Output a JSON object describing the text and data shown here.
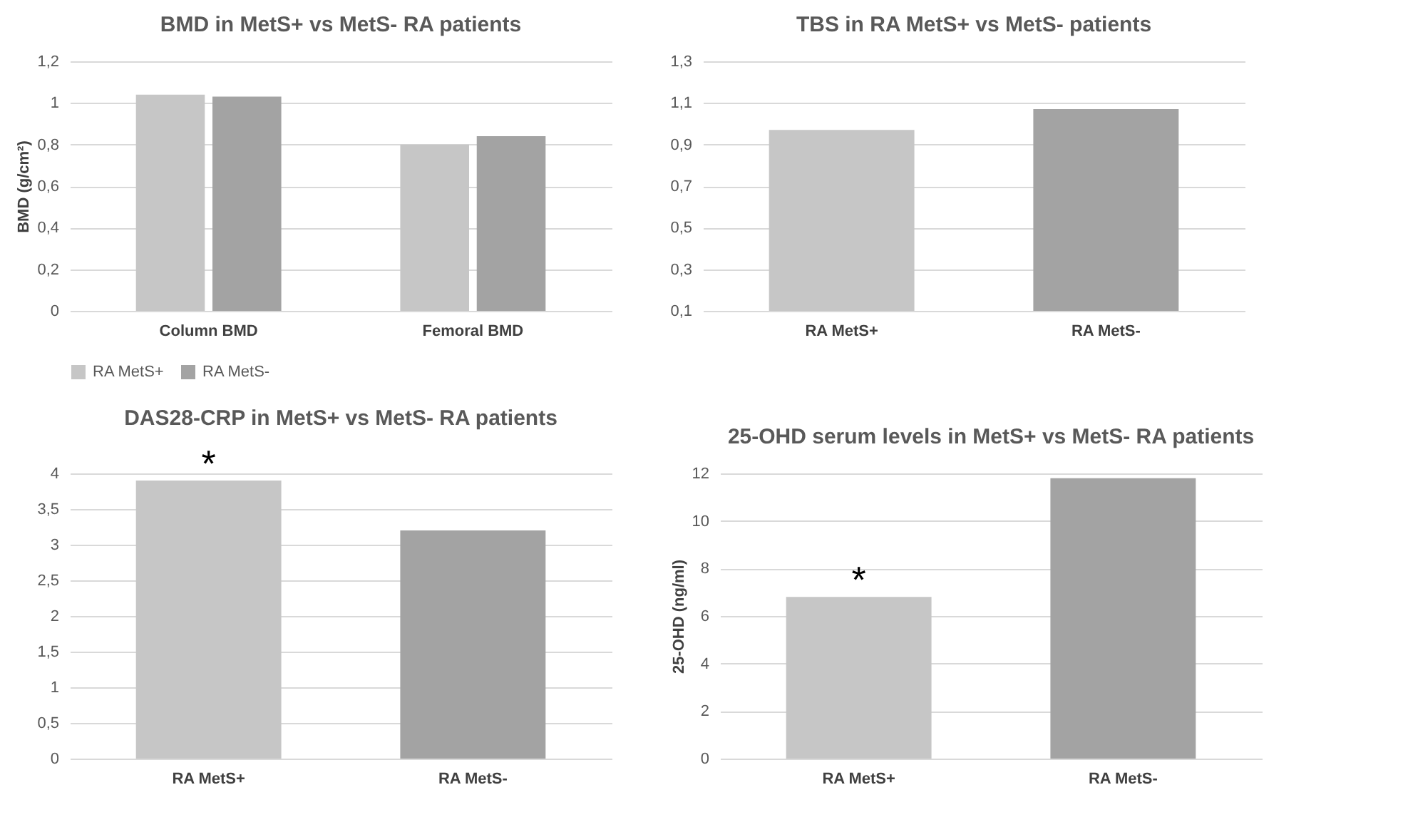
{
  "chart_data": [
    {
      "type": "bar",
      "title": "BMD  in MetS+ vs MetS- RA patients",
      "ylabel": "BMD (g/cm²)",
      "categories": [
        "Column BMD",
        "Femoral BMD"
      ],
      "series": [
        {
          "name": "RA MetS+",
          "color": "#c6c6c6",
          "values": [
            1.04,
            0.8
          ]
        },
        {
          "name": "RA MetS-",
          "color": "#a3a3a3",
          "values": [
            1.03,
            0.84
          ]
        }
      ],
      "ylim": [
        0,
        1.2
      ],
      "yticks": [
        0,
        {
          "value": 0.2,
          "label": "0,2"
        },
        {
          "value": 0.4,
          "label": "0,4"
        },
        {
          "value": 0.6,
          "label": "0,6"
        },
        {
          "value": 0.8,
          "label": "0,8"
        },
        1,
        {
          "value": 1.2,
          "label": "1,2"
        }
      ],
      "grid": "y",
      "legend": "bottom"
    },
    {
      "type": "bar",
      "title": "TBS in RA MetS+ vs MetS- patients",
      "categories": [
        "RA MetS+",
        "RA MetS-"
      ],
      "values": [
        0.97,
        1.07
      ],
      "colors": [
        "#c6c6c6",
        "#a3a3a3"
      ],
      "ylim": [
        0.1,
        1.3
      ],
      "yticks": [
        {
          "value": 0.1,
          "label": "0,1"
        },
        {
          "value": 0.3,
          "label": "0,3"
        },
        {
          "value": 0.5,
          "label": "0,5"
        },
        {
          "value": 0.7,
          "label": "0,7"
        },
        {
          "value": 0.9,
          "label": "0,9"
        },
        {
          "value": 1.1,
          "label": "1,1"
        },
        {
          "value": 1.3,
          "label": "1,3"
        }
      ],
      "grid": "y"
    },
    {
      "type": "bar",
      "title": "DAS28-CRP in MetS+ vs MetS- RA patients",
      "categories": [
        "RA MetS+",
        "RA MetS-"
      ],
      "values": [
        3.9,
        3.2
      ],
      "colors": [
        "#c6c6c6",
        "#a3a3a3"
      ],
      "ylim": [
        0,
        4
      ],
      "yticks": [
        0,
        {
          "value": 0.5,
          "label": "0,5"
        },
        1,
        {
          "value": 1.5,
          "label": "1,5"
        },
        2,
        {
          "value": 2.5,
          "label": "2,5"
        },
        3,
        {
          "value": 3.5,
          "label": "3,5"
        },
        4
      ],
      "grid": "y",
      "annotations": [
        {
          "text": "*",
          "x": "RA MetS+",
          "y": 3.9
        }
      ]
    },
    {
      "type": "bar",
      "title": "25-OHD serum levels in MetS+ vs MetS- RA patients",
      "ylabel": "25-OHD (ng/ml)",
      "categories": [
        "RA MetS+",
        "RA MetS-"
      ],
      "values": [
        6.8,
        11.8
      ],
      "colors": [
        "#c6c6c6",
        "#a3a3a3"
      ],
      "ylim": [
        0,
        12
      ],
      "yticks": [
        0,
        2,
        4,
        6,
        8,
        10,
        12
      ],
      "grid": "y",
      "annotations": [
        {
          "text": "*",
          "x": "RA MetS+",
          "y": 6.8
        }
      ]
    }
  ]
}
